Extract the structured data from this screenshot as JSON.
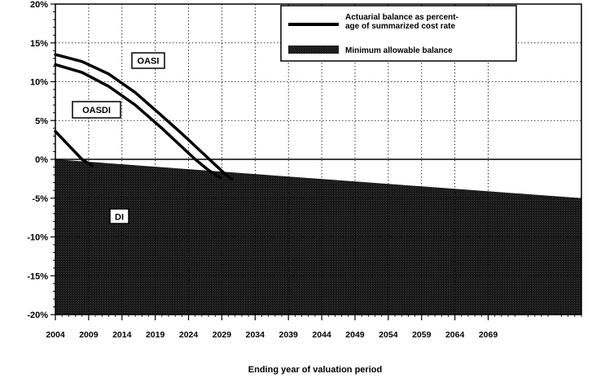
{
  "chart_data": {
    "type": "line",
    "xlabel": "Ending year of valuation period",
    "ylabel": "",
    "title": "",
    "xlim": [
      2004,
      2083
    ],
    "ylim": [
      -20,
      20
    ],
    "x_ticks": [
      "2004",
      "2009",
      "2014",
      "2019",
      "2024",
      "2029",
      "2034",
      "2039",
      "2044",
      "2049",
      "2054",
      "2059",
      "2064",
      "2069"
    ],
    "y_ticks": [
      20,
      15,
      10,
      5,
      0,
      -5,
      -10,
      -15,
      -20
    ],
    "y_tick_labels": [
      "20%",
      "15%",
      "10%",
      "5%",
      "0%",
      "-5%",
      "-10%",
      "-15%",
      "-20%"
    ],
    "grid": true,
    "legend": {
      "position": "top-right",
      "entries": [
        {
          "label": "Actuarial balance as percent-age of summarized cost rate",
          "lines": [
            "Actuarial balance as percent-",
            "age of summarized cost rate"
          ],
          "style": "line"
        },
        {
          "label": "Minimum allowable balance",
          "lines": [
            "Minimum allowable balance"
          ],
          "style": "shaded"
        }
      ]
    },
    "series": [
      {
        "name": "OASI",
        "label": "OASI",
        "x": [
          2004,
          2008,
          2012,
          2016,
          2020,
          2023,
          2026,
          2028,
          2029.5,
          2030.5
        ],
        "y": [
          13.5,
          12.6,
          11.0,
          8.6,
          5.6,
          3.3,
          0.9,
          -0.7,
          -1.9,
          -2.6
        ]
      },
      {
        "name": "OASDI",
        "label": "OASDI",
        "x": [
          2004,
          2008,
          2012,
          2016,
          2020,
          2023,
          2025,
          2027,
          2028.8
        ],
        "y": [
          12.2,
          11.2,
          9.4,
          7.0,
          4.0,
          1.6,
          0.0,
          -1.4,
          -2.4
        ]
      },
      {
        "name": "DI",
        "label": "DI",
        "x": [
          2004,
          2006,
          2008,
          2009.5
        ],
        "y": [
          3.6,
          1.8,
          0.0,
          -0.8
        ]
      },
      {
        "name": "Minimum allowable balance",
        "type": "area",
        "x": [
          2004,
          2083
        ],
        "y": [
          0.0,
          -5.0
        ],
        "baseline": -20
      }
    ]
  }
}
